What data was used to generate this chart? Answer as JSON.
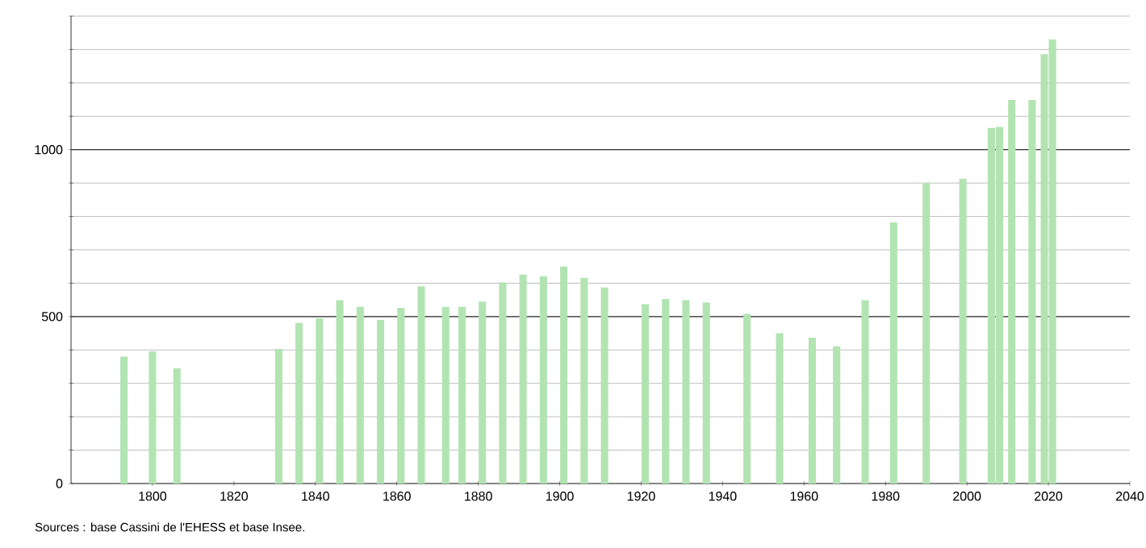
{
  "chart_data": {
    "type": "bar",
    "x": [
      1793,
      1800,
      1806,
      1831,
      1836,
      1841,
      1846,
      1851,
      1856,
      1861,
      1866,
      1872,
      1876,
      1881,
      1886,
      1891,
      1896,
      1901,
      1906,
      1911,
      1921,
      1926,
      1931,
      1936,
      1946,
      1954,
      1962,
      1968,
      1975,
      1982,
      1990,
      1999,
      2006,
      2008,
      2011,
      2016,
      2019,
      2021
    ],
    "values": [
      380,
      396,
      345,
      403,
      481,
      495,
      549,
      529,
      490,
      526,
      591,
      529,
      529,
      545,
      602,
      626,
      621,
      650,
      616,
      587,
      537,
      553,
      549,
      542,
      508,
      450,
      437,
      411,
      549,
      782,
      900,
      913,
      1065,
      1068,
      1149,
      1149,
      1286,
      1330
    ],
    "color": "#b2e4b2",
    "xlim": [
      1780,
      2040
    ],
    "xticks": [
      1800,
      1820,
      1840,
      1860,
      1880,
      1900,
      1920,
      1940,
      1960,
      1980,
      2000,
      2020,
      2040
    ],
    "ylim": [
      0,
      1400
    ],
    "yticks": [
      0,
      {
        "value": 100,
        "label": null
      },
      {
        "value": 200,
        "label": null
      },
      {
        "value": 300,
        "label": null
      },
      {
        "value": 400,
        "label": null
      },
      500,
      {
        "value": 600,
        "label": null
      },
      {
        "value": 700,
        "label": null
      },
      {
        "value": 800,
        "label": null
      },
      {
        "value": 900,
        "label": null
      },
      1000,
      {
        "value": 1100,
        "label": null
      },
      {
        "value": 1200,
        "label": null
      },
      {
        "value": 1300,
        "label": null
      },
      {
        "value": 1400,
        "label": null
      }
    ],
    "grid": "y",
    "annotations": [
      "Sources : base Cassini de l'EHESS et base Insee."
    ]
  }
}
